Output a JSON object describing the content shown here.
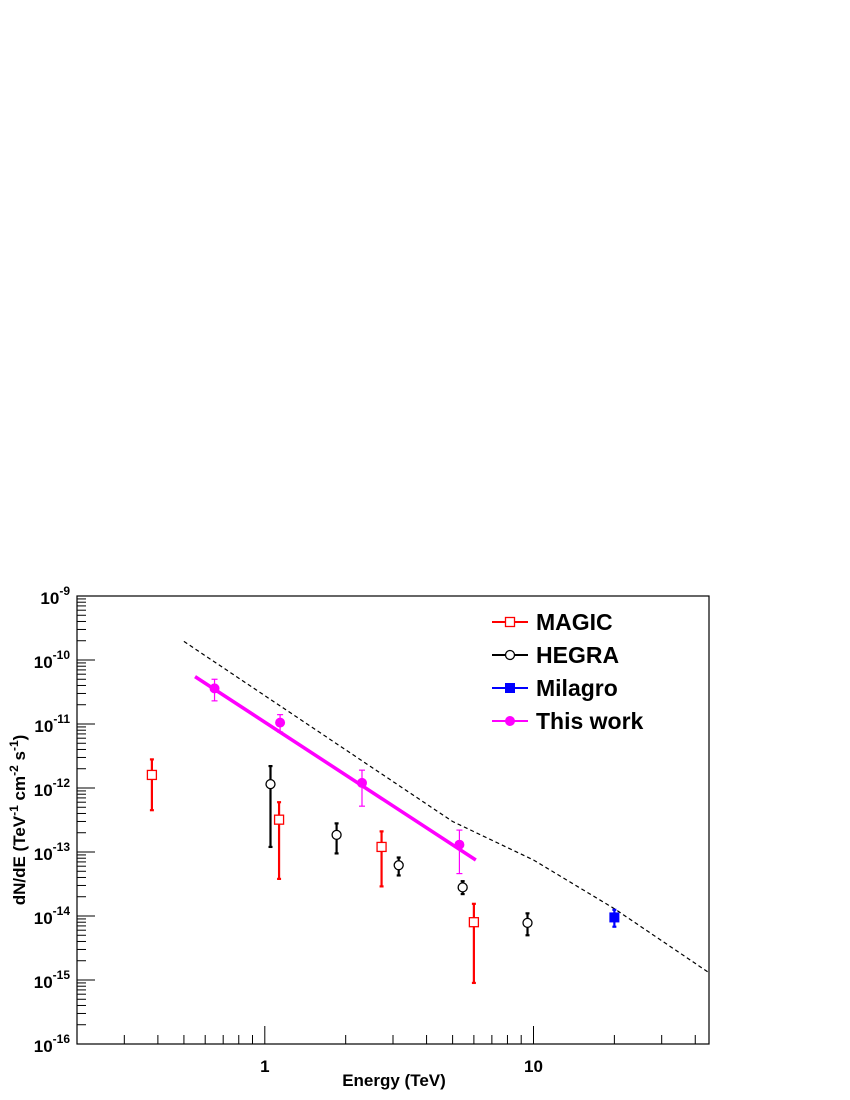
{
  "chart_data": {
    "type": "scatter",
    "title": "",
    "xlabel": "Energy (TeV)",
    "ylabel": "dN/dE (TeV-1 cm-2 s-1)",
    "ylabel_parts": {
      "pre": "dN/dE (TeV",
      "sup1": "-1",
      "mid": " cm",
      "sup2": "-2",
      "mid2": " s",
      "sup3": "-1",
      "post": ")"
    },
    "x_scale": "log",
    "y_scale": "log",
    "xlim": [
      0.2,
      45
    ],
    "ylim": [
      1e-16,
      1e-09
    ],
    "x_tick_labels": [
      {
        "value": 1,
        "label": "1"
      },
      {
        "value": 10,
        "label": "10"
      }
    ],
    "y_tick_labels": [
      {
        "value": 1e-09,
        "base": "10",
        "exp": "-9"
      },
      {
        "value": 1e-10,
        "base": "10",
        "exp": "-10"
      },
      {
        "value": 1e-11,
        "base": "10",
        "exp": "-11"
      },
      {
        "value": 1e-12,
        "base": "10",
        "exp": "-12"
      },
      {
        "value": 1e-13,
        "base": "10",
        "exp": "-13"
      },
      {
        "value": 1e-14,
        "base": "10",
        "exp": "-14"
      },
      {
        "value": 1e-15,
        "base": "10",
        "exp": "-15"
      },
      {
        "value": 1e-16,
        "base": "10",
        "exp": "-16"
      }
    ],
    "grid": false,
    "legend_position": "top-right",
    "series": [
      {
        "name": "MAGIC",
        "marker": "open-square",
        "color": "#ff0000",
        "points": [
          {
            "x": 0.38,
            "y": 1.6e-12,
            "ylo": 4.5e-13,
            "yhi": 2.8e-12
          },
          {
            "x": 1.13,
            "y": 3.2e-13,
            "ylo": 3.8e-14,
            "yhi": 6e-13
          },
          {
            "x": 2.72,
            "y": 1.2e-13,
            "ylo": 2.9e-14,
            "yhi": 2.1e-13
          },
          {
            "x": 6.0,
            "y": 8e-15,
            "ylo": 9e-16,
            "yhi": 1.55e-14
          }
        ]
      },
      {
        "name": "HEGRA",
        "marker": "open-circle",
        "color": "#000000",
        "points": [
          {
            "x": 1.05,
            "y": 1.15e-12,
            "ylo": 1.2e-13,
            "yhi": 2.2e-12
          },
          {
            "x": 1.85,
            "y": 1.85e-13,
            "ylo": 9.5e-14,
            "yhi": 2.8e-13
          },
          {
            "x": 3.15,
            "y": 6.2e-14,
            "ylo": 4.3e-14,
            "yhi": 8.2e-14
          },
          {
            "x": 5.45,
            "y": 2.8e-14,
            "ylo": 2.2e-14,
            "yhi": 3.5e-14
          },
          {
            "x": 9.5,
            "y": 7.8e-15,
            "ylo": 5e-15,
            "yhi": 1.1e-14
          }
        ]
      },
      {
        "name": "Milagro",
        "marker": "filled-square",
        "color": "#0000ff",
        "points": [
          {
            "x": 20.0,
            "y": 9.5e-15,
            "ylo": 6.8e-15,
            "yhi": 1.25e-14
          }
        ]
      },
      {
        "name": "This work",
        "marker": "filled-circle",
        "color": "#ff00ff",
        "points": [
          {
            "x": 0.65,
            "y": 3.6e-11,
            "ylo": 2.3e-11,
            "yhi": 5e-11
          },
          {
            "x": 1.14,
            "y": 1.05e-11,
            "ylo": 7.5e-12,
            "yhi": 1.4e-11
          },
          {
            "x": 2.3,
            "y": 1.2e-12,
            "ylo": 5.2e-13,
            "yhi": 1.9e-12
          },
          {
            "x": 5.3,
            "y": 1.3e-13,
            "ylo": 4.6e-14,
            "yhi": 2.2e-13
          }
        ],
        "fit_line": [
          {
            "x": 0.55,
            "y": 5.5e-11
          },
          {
            "x": 6.1,
            "y": 7.5e-14
          }
        ]
      }
    ],
    "reference_curve": {
      "style": "dashed",
      "color": "#000000",
      "points": [
        {
          "x": 0.5,
          "y": 1.95e-10
        },
        {
          "x": 5.0,
          "y": 3e-13
        },
        {
          "x": 10.0,
          "y": 7.5e-14
        },
        {
          "x": 20.0,
          "y": 1.3e-14
        },
        {
          "x": 45.0,
          "y": 1.3e-15
        }
      ]
    }
  }
}
